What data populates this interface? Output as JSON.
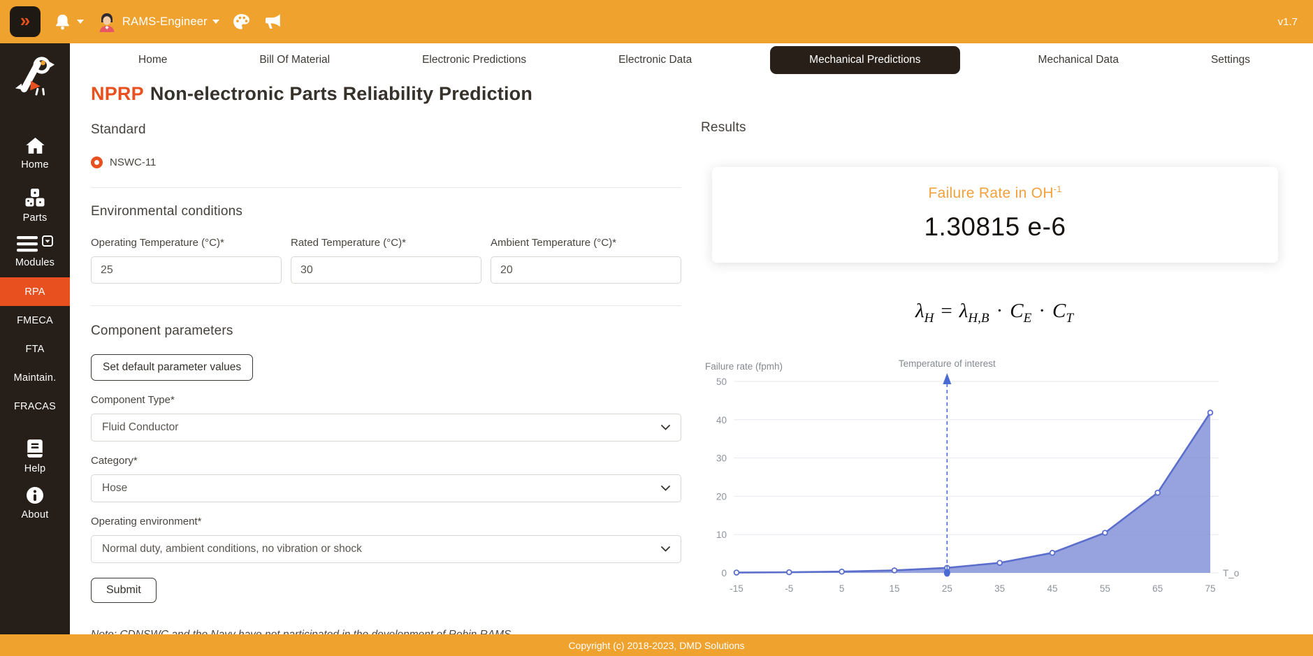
{
  "topbar": {
    "collapse_icon": "»",
    "user_name": "RAMS-Engineer",
    "version": "v1.7"
  },
  "sidebar": {
    "home_label": "Home",
    "parts_label": "Parts",
    "modules_label": "Modules",
    "module_items": [
      "RPA",
      "FMECA",
      "FTA",
      "Maintain.",
      "FRACAS"
    ],
    "active_module": "RPA",
    "help_label": "Help",
    "about_label": "About"
  },
  "tabs": {
    "items": [
      "Home",
      "Bill Of Material",
      "Electronic Predictions",
      "Electronic Data",
      "Mechanical Predictions",
      "Mechanical Data",
      "Settings"
    ],
    "active": "Mechanical Predictions"
  },
  "header": {
    "abbr": "NPRP",
    "title": "Non-electronic Parts Reliability Prediction"
  },
  "standard": {
    "heading": "Standard",
    "option": "NSWC-11"
  },
  "environment": {
    "heading": "Environmental conditions",
    "fields": [
      {
        "label": "Operating Temperature (°C)*",
        "value": "25"
      },
      {
        "label": "Rated Temperature (°C)*",
        "value": "30"
      },
      {
        "label": "Ambient Temperature (°C)*",
        "value": "20"
      }
    ]
  },
  "component": {
    "heading": "Component parameters",
    "default_button": "Set default parameter values",
    "type_label": "Component Type*",
    "type_value": "Fluid Conductor",
    "category_label": "Category*",
    "category_value": "Hose",
    "environment_label": "Operating environment*",
    "environment_value": "Normal duty, ambient conditions, no vibration or shock",
    "submit_label": "Submit"
  },
  "note": "Note: CDNSWC and the Navy have not participated in the development of Robin RAMS.",
  "results": {
    "heading": "Results",
    "card_title": "Failure Rate in OH",
    "card_title_sup": "-1",
    "value": "1.30815 e-6",
    "formula": {
      "l1": "λ",
      "s1": "H",
      "eq": "=",
      "l2": "λ",
      "s2": "H,B",
      "d1": "·",
      "v3": "C",
      "s3": "E",
      "d2": "·",
      "v4": "C",
      "s4": "T"
    }
  },
  "chart_data": {
    "type": "area",
    "x": [
      -15,
      -5,
      5,
      15,
      25,
      35,
      45,
      55,
      65,
      75
    ],
    "values": [
      0.08,
      0.16,
      0.33,
      0.65,
      1.31,
      2.62,
      5.23,
      10.47,
      20.93,
      41.86
    ],
    "title": "",
    "ylabel": "Failure rate (fpmh)",
    "xlabel": "T_o",
    "annotation": "Temperature of interest",
    "annotation_x": 25,
    "ylim": [
      0,
      50
    ],
    "ytick_step": 10,
    "grid": "horizontal",
    "line_color": "#5B6ECB",
    "fill_color": "#8593D9",
    "annotation_color": "#4A6BD4",
    "tick_color": "#8D929C"
  },
  "footer": {
    "text": "Copyright (c) 2018-2023, DMD Solutions"
  },
  "colors": {
    "topbar_orange": "#F0A22E",
    "accent_red_orange": "#E8501F",
    "sidebar_dark": "#261F19",
    "card_title_orange": "#F3A13B"
  }
}
